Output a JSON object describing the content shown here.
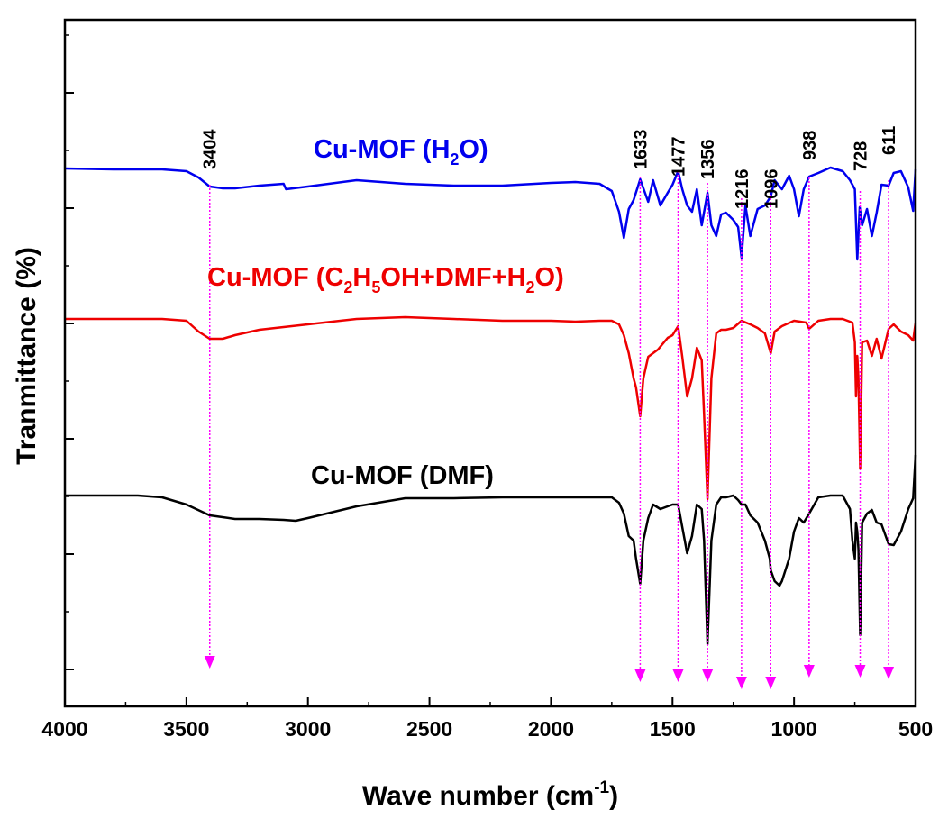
{
  "chart_data": {
    "type": "line",
    "xlabel_main": "Wave number (cm",
    "xlabel_sup": "-1",
    "xlabel_close": ")",
    "ylabel": "Tranmittance (%)",
    "xlim": [
      4000,
      500
    ],
    "x_reversed": true,
    "y_tick_labels": false,
    "x_ticks": [
      "4000",
      "3500",
      "3000",
      "2500",
      "2000",
      "1500",
      "1000",
      "500"
    ],
    "peak_markers": [
      {
        "label": "3404",
        "x": 3404
      },
      {
        "label": "1633",
        "x": 1633
      },
      {
        "label": "1477",
        "x": 1477
      },
      {
        "label": "1356",
        "x": 1356
      },
      {
        "label": "1216",
        "x": 1216
      },
      {
        "label": "1096",
        "x": 1096
      },
      {
        "label": "938",
        "x": 938
      },
      {
        "label": "728",
        "x": 728
      },
      {
        "label": "611",
        "x": 611
      }
    ],
    "series": [
      {
        "name_parts": [
          [
            "Cu-MOF (H",
            "n"
          ],
          [
            "2",
            "sub"
          ],
          [
            "O)",
            "n"
          ]
        ],
        "color": "#0000ee",
        "x": [
          4000,
          3800,
          3600,
          3500,
          3450,
          3404,
          3350,
          3300,
          3200,
          3100,
          3090,
          3000,
          2800,
          2600,
          2400,
          2200,
          2000,
          1900,
          1800,
          1750,
          1720,
          1700,
          1680,
          1660,
          1633,
          1600,
          1580,
          1550,
          1520,
          1500,
          1477,
          1460,
          1440,
          1420,
          1400,
          1380,
          1356,
          1340,
          1320,
          1300,
          1280,
          1250,
          1230,
          1216,
          1200,
          1180,
          1150,
          1120,
          1096,
          1080,
          1050,
          1020,
          1000,
          980,
          960,
          938,
          900,
          850,
          800,
          770,
          750,
          740,
          730,
          720,
          700,
          680,
          660,
          640,
          611,
          590,
          560,
          530,
          510,
          500
        ],
        "y": [
          187,
          188,
          188,
          190,
          197,
          207,
          209,
          209,
          206,
          204,
          210,
          207,
          200,
          204,
          206,
          206,
          203,
          202,
          204,
          212,
          235,
          264,
          232,
          222,
          199,
          224,
          200,
          228,
          214,
          205,
          190,
          210,
          228,
          235,
          210,
          250,
          214,
          250,
          262,
          238,
          236,
          244,
          252,
          286,
          228,
          262,
          232,
          228,
          218,
          200,
          210,
          195,
          210,
          240,
          210,
          196,
          192,
          186,
          190,
          200,
          210,
          288,
          230,
          250,
          232,
          262,
          236,
          205,
          206,
          192,
          190,
          208,
          234,
          188
        ]
      },
      {
        "name_parts": [
          [
            "Cu-MOF (C",
            "n"
          ],
          [
            "2",
            "sub"
          ],
          [
            "H",
            "n"
          ],
          [
            "5",
            "sub"
          ],
          [
            "OH+DMF+H",
            "n"
          ],
          [
            "2",
            "sub"
          ],
          [
            "O)",
            "n"
          ]
        ],
        "color": "#ee0000",
        "x": [
          4000,
          3800,
          3600,
          3500,
          3450,
          3404,
          3350,
          3300,
          3200,
          3000,
          2800,
          2600,
          2400,
          2200,
          2000,
          1900,
          1800,
          1750,
          1720,
          1700,
          1680,
          1660,
          1650,
          1633,
          1620,
          1600,
          1560,
          1520,
          1500,
          1477,
          1460,
          1440,
          1420,
          1400,
          1380,
          1370,
          1356,
          1340,
          1320,
          1300,
          1280,
          1250,
          1216,
          1180,
          1150,
          1120,
          1096,
          1080,
          1050,
          1000,
          950,
          938,
          900,
          850,
          800,
          760,
          750,
          745,
          740,
          735,
          728,
          720,
          700,
          680,
          660,
          640,
          611,
          590,
          560,
          530,
          510,
          500
        ],
        "y": [
          354,
          354,
          354,
          356,
          368,
          376,
          376,
          372,
          366,
          360,
          354,
          352,
          354,
          356,
          356,
          357,
          356,
          356,
          360,
          372,
          392,
          420,
          430,
          462,
          420,
          396,
          388,
          375,
          372,
          362,
          396,
          440,
          420,
          386,
          400,
          460,
          554,
          420,
          370,
          366,
          366,
          364,
          356,
          360,
          364,
          370,
          392,
          368,
          362,
          356,
          358,
          365,
          356,
          354,
          354,
          358,
          380,
          440,
          395,
          420,
          520,
          380,
          378,
          395,
          376,
          398,
          365,
          360,
          368,
          372,
          378,
          358
        ]
      },
      {
        "name_parts": [
          [
            "Cu-MOF (DMF)",
            "n"
          ]
        ],
        "color": "#000000",
        "x": [
          4000,
          3800,
          3700,
          3600,
          3500,
          3404,
          3300,
          3200,
          3100,
          3050,
          3000,
          2800,
          2600,
          2400,
          2200,
          2000,
          1900,
          1800,
          1750,
          1720,
          1700,
          1680,
          1660,
          1650,
          1633,
          1620,
          1600,
          1580,
          1550,
          1520,
          1500,
          1477,
          1460,
          1440,
          1420,
          1400,
          1380,
          1370,
          1356,
          1340,
          1320,
          1300,
          1280,
          1250,
          1230,
          1216,
          1200,
          1180,
          1150,
          1120,
          1100,
          1096,
          1080,
          1060,
          1050,
          1020,
          1000,
          980,
          960,
          938,
          900,
          850,
          800,
          770,
          760,
          750,
          745,
          740,
          735,
          728,
          720,
          700,
          680,
          660,
          640,
          611,
          590,
          560,
          530,
          510,
          500
        ],
        "y": [
          550,
          550,
          550,
          552,
          560,
          572,
          576,
          576,
          577,
          578,
          575,
          562,
          553,
          553,
          552,
          552,
          552,
          552,
          552,
          558,
          570,
          595,
          600,
          620,
          648,
          600,
          575,
          560,
          565,
          562,
          560,
          560,
          585,
          614,
          595,
          560,
          565,
          600,
          715,
          600,
          560,
          552,
          552,
          550,
          555,
          560,
          560,
          572,
          580,
          600,
          620,
          633,
          645,
          650,
          645,
          620,
          590,
          575,
          580,
          570,
          552,
          550,
          550,
          565,
          600,
          620,
          580,
          590,
          610,
          705,
          580,
          570,
          566,
          580,
          582,
          604,
          605,
          590,
          565,
          553,
          505
        ]
      }
    ]
  }
}
